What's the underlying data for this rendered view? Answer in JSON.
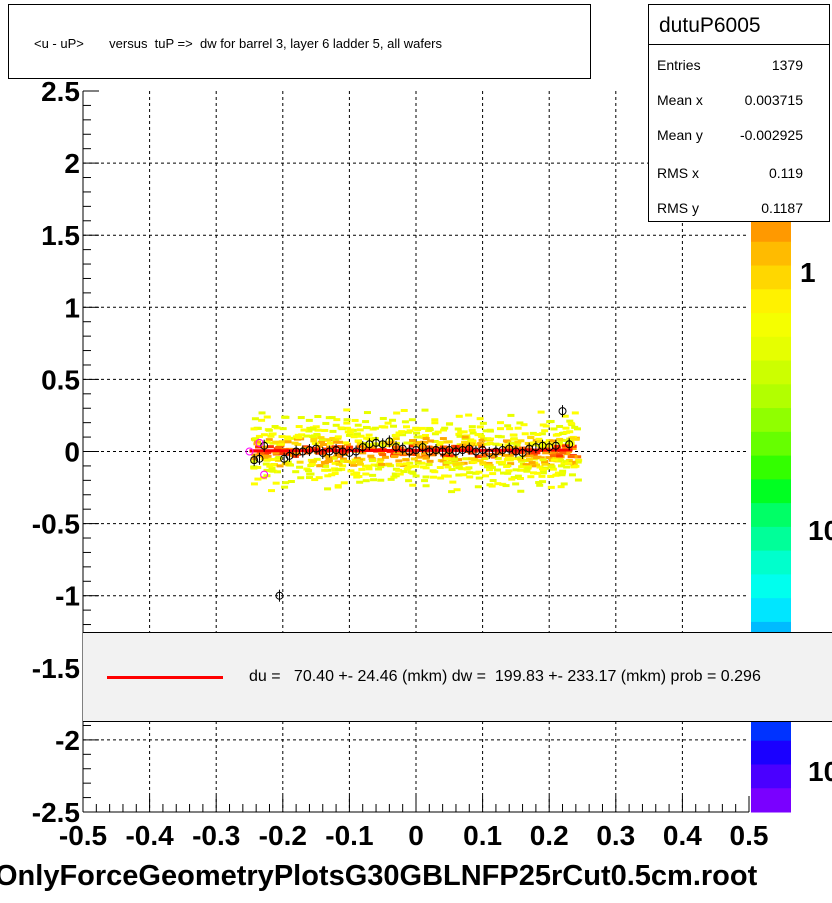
{
  "title": "<u - uP>       versus  tuP =>  dw for barrel 3, layer 6 ladder 5, all wafers",
  "stats": {
    "name": "dutuP6005",
    "rows": [
      {
        "key": "Entries",
        "value": "1379"
      },
      {
        "key": "Mean x",
        "value": "0.003715"
      },
      {
        "key": "Mean y",
        "value": "-0.002925"
      },
      {
        "key": "RMS x",
        "value": "0.119"
      },
      {
        "key": "RMS y",
        "value": "0.1187"
      }
    ]
  },
  "fit_legend": "du =   70.40 +- 24.46 (mkm) dw =  199.83 +- 233.17 (mkm) prob = 0.296",
  "file_label": "OnlyForceGeometryPlotsG30GBLNFP25rCut0.5cm.root",
  "colors": {
    "fit_line": "#ff0000",
    "fit_box_bg": "#f2f2f2"
  },
  "chart_data": {
    "type": "heatmap",
    "xlim": [
      -0.5,
      0.5
    ],
    "ylim": [
      -2.5,
      2.5
    ],
    "x_ticks": [
      "-0.5",
      "-0.4",
      "-0.3",
      "-0.2",
      "-0.1",
      "0",
      "0.1",
      "0.2",
      "0.3",
      "0.4",
      "0.5"
    ],
    "y_ticks": [
      "-2.5",
      "-2",
      "-1.5",
      "-1",
      "-0.5",
      "0",
      "0.5",
      "1",
      "1.5",
      "2",
      "2.5"
    ],
    "grid": true,
    "colorbar_labels": [
      "1",
      "10",
      "10"
    ],
    "profile_points": [
      {
        "x": -0.243,
        "y": -0.06
      },
      {
        "x": -0.235,
        "y": -0.05
      },
      {
        "x": -0.228,
        "y": 0.04
      },
      {
        "x": -0.205,
        "y": -1.0
      },
      {
        "x": -0.198,
        "y": -0.05
      },
      {
        "x": -0.19,
        "y": -0.03
      },
      {
        "x": -0.18,
        "y": 0.0
      },
      {
        "x": -0.17,
        "y": 0.0
      },
      {
        "x": -0.16,
        "y": 0.01
      },
      {
        "x": -0.15,
        "y": 0.02
      },
      {
        "x": -0.14,
        "y": -0.01
      },
      {
        "x": -0.13,
        "y": 0.0
      },
      {
        "x": -0.12,
        "y": 0.01
      },
      {
        "x": -0.11,
        "y": 0.0
      },
      {
        "x": -0.1,
        "y": -0.01
      },
      {
        "x": -0.09,
        "y": 0.0
      },
      {
        "x": -0.08,
        "y": 0.03
      },
      {
        "x": -0.07,
        "y": 0.05
      },
      {
        "x": -0.06,
        "y": 0.06
      },
      {
        "x": -0.05,
        "y": 0.05
      },
      {
        "x": -0.04,
        "y": 0.07
      },
      {
        "x": -0.03,
        "y": 0.03
      },
      {
        "x": -0.02,
        "y": 0.02
      },
      {
        "x": -0.01,
        "y": 0.0
      },
      {
        "x": 0.0,
        "y": 0.01
      },
      {
        "x": 0.01,
        "y": 0.03
      },
      {
        "x": 0.02,
        "y": 0.0
      },
      {
        "x": 0.03,
        "y": 0.01
      },
      {
        "x": 0.04,
        "y": 0.0
      },
      {
        "x": 0.05,
        "y": 0.01
      },
      {
        "x": 0.06,
        "y": 0.0
      },
      {
        "x": 0.07,
        "y": 0.01
      },
      {
        "x": 0.08,
        "y": 0.02
      },
      {
        "x": 0.09,
        "y": 0.0
      },
      {
        "x": 0.1,
        "y": 0.01
      },
      {
        "x": 0.11,
        "y": -0.01
      },
      {
        "x": 0.12,
        "y": 0.0
      },
      {
        "x": 0.13,
        "y": 0.01
      },
      {
        "x": 0.14,
        "y": 0.02
      },
      {
        "x": 0.15,
        "y": 0.0
      },
      {
        "x": 0.16,
        "y": -0.01
      },
      {
        "x": 0.17,
        "y": 0.02
      },
      {
        "x": 0.18,
        "y": 0.03
      },
      {
        "x": 0.19,
        "y": 0.04
      },
      {
        "x": 0.2,
        "y": 0.03
      },
      {
        "x": 0.21,
        "y": 0.04
      },
      {
        "x": 0.22,
        "y": 0.28
      },
      {
        "x": 0.23,
        "y": 0.05
      }
    ],
    "magenta_points": [
      {
        "x": -0.25,
        "y": 0.0
      },
      {
        "x": -0.228,
        "y": -0.16
      },
      {
        "x": -0.235,
        "y": 0.06
      }
    ],
    "fit_line": {
      "x": [
        -0.25,
        0.235
      ],
      "y": [
        0.005,
        0.01
      ]
    }
  }
}
